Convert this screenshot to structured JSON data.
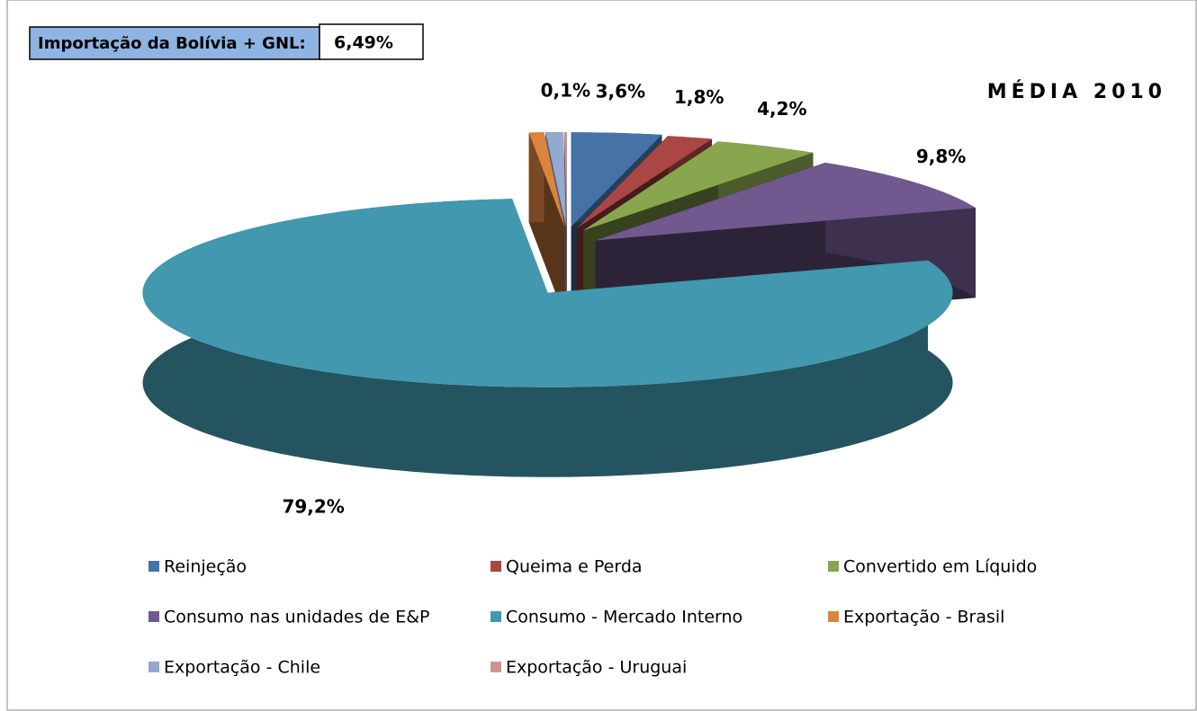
{
  "chart_data": {
    "type": "pie3d",
    "title": "MÉDIA 2010",
    "note": {
      "label": "Importação da Bolívia + GNL:",
      "value": "6,49%"
    },
    "categories": [
      "Reinjeção",
      "Queima e Perda",
      "Convertido em Líquido",
      "Consumo nas unidades de E&P",
      "Consumo - Mercado Interno",
      "Exportação - Brasil",
      "Exportação - Chile",
      "Exportação - Uruguai"
    ],
    "values": [
      3.6,
      1.8,
      4.2,
      9.8,
      79.2,
      0.6,
      0.7,
      0.1
    ],
    "value_labels": [
      "3,6%",
      "1,8%",
      "4,2%",
      "9,8%",
      "79,2%",
      null,
      null,
      "0,1%"
    ],
    "colors": [
      "#4572a7",
      "#aa4643",
      "#89a54e",
      "#71588f",
      "#4198af",
      "#db843d",
      "#93a9cf",
      "#d19392"
    ],
    "legend": "bottom"
  }
}
